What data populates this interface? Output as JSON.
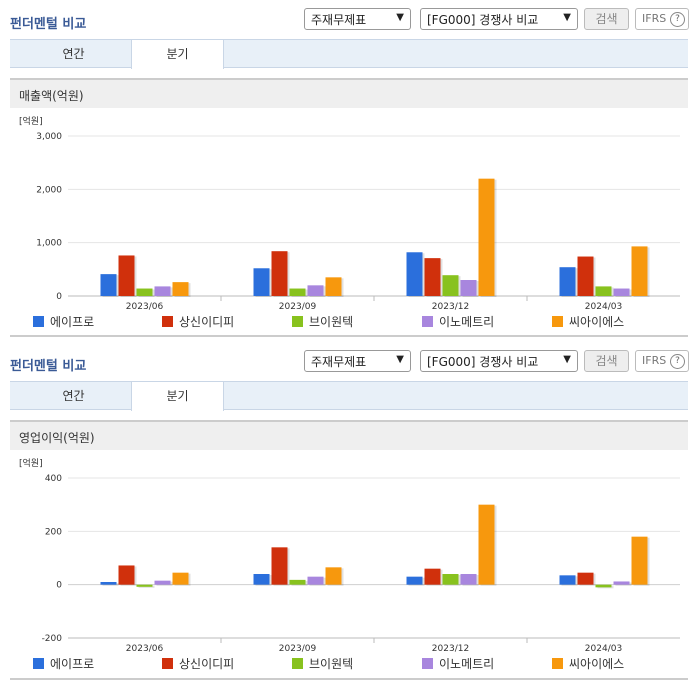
{
  "panels": [
    {
      "title": "펀더멘털 비교",
      "select_type": "주재무제표",
      "select_peer": "[FG000] 경쟁사 비교",
      "search_label": "검색",
      "ifrs_label": "IFRS",
      "help_label": "?",
      "tabs": [
        {
          "label": "연간"
        },
        {
          "label": "분기"
        }
      ],
      "active_tab": 1,
      "chart_title": "매출액(억원)"
    },
    {
      "title": "펀더멘털 비교",
      "select_type": "주재무제표",
      "select_peer": "[FG000] 경쟁사 비교",
      "search_label": "검색",
      "ifrs_label": "IFRS",
      "help_label": "?",
      "tabs": [
        {
          "label": "연간"
        },
        {
          "label": "분기"
        }
      ],
      "active_tab": 1,
      "chart_title": "영업이익(억원)"
    }
  ],
  "chart_data": [
    {
      "type": "bar",
      "unit_label": "[억원]",
      "categories": [
        "2023/06",
        "2023/09",
        "2023/12",
        "2024/03"
      ],
      "ylim": [
        0,
        3000
      ],
      "yticks": [
        {
          "v": 0,
          "label": "0"
        },
        {
          "v": 1000,
          "label": "1,000"
        },
        {
          "v": 2000,
          "label": "2,000"
        },
        {
          "v": 3000,
          "label": "3,000"
        }
      ],
      "grid": true,
      "legend_position": "bottom",
      "series": [
        {
          "name": "에이프로",
          "color": "#2b6fdc",
          "values": [
            410,
            520,
            820,
            540
          ]
        },
        {
          "name": "상신이디피",
          "color": "#d0300c",
          "values": [
            760,
            840,
            710,
            740
          ]
        },
        {
          "name": "브이원텍",
          "color": "#88c21e",
          "values": [
            140,
            140,
            390,
            180
          ]
        },
        {
          "name": "이노메트리",
          "color": "#a886de",
          "values": [
            180,
            200,
            300,
            140
          ]
        },
        {
          "name": "씨아이에스",
          "color": "#f7980d",
          "values": [
            260,
            350,
            2200,
            930
          ]
        }
      ]
    },
    {
      "type": "bar",
      "unit_label": "[억원]",
      "categories": [
        "2023/06",
        "2023/09",
        "2023/12",
        "2024/03"
      ],
      "ylim": [
        -200,
        400
      ],
      "yticks": [
        {
          "v": -200,
          "label": "-200"
        },
        {
          "v": 0,
          "label": "0"
        },
        {
          "v": 200,
          "label": "200"
        },
        {
          "v": 400,
          "label": "400"
        }
      ],
      "grid": true,
      "legend_position": "bottom",
      "series": [
        {
          "name": "에이프로",
          "color": "#2b6fdc",
          "values": [
            10,
            40,
            30,
            35
          ]
        },
        {
          "name": "상신이디피",
          "color": "#d0300c",
          "values": [
            72,
            140,
            60,
            45
          ]
        },
        {
          "name": "브이원텍",
          "color": "#88c21e",
          "values": [
            -8,
            18,
            40,
            -10
          ]
        },
        {
          "name": "이노메트리",
          "color": "#a886de",
          "values": [
            15,
            30,
            40,
            12
          ]
        },
        {
          "name": "씨아이에스",
          "color": "#f7980d",
          "values": [
            45,
            65,
            300,
            180
          ]
        }
      ]
    }
  ]
}
